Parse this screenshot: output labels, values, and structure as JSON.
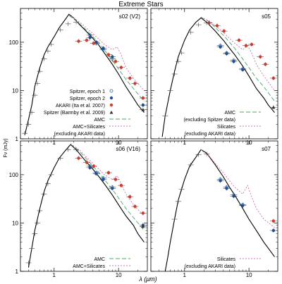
{
  "title": "Extreme Stars",
  "xlabel": "λ (μm)",
  "ylabel": "Fν (mJy)",
  "colors": {
    "spitzer1": "#2b6fb8",
    "spitzer2": "#1f4f99",
    "akari": "#d23a2a",
    "barmby": "#333333",
    "amc": "#4aa866",
    "silicates": "#d66bb8",
    "model": "#000000"
  },
  "chart_data": [
    {
      "type": "scatter",
      "panel": "s02 (V2)",
      "title": "s02 (V2)",
      "x_scale": "log",
      "y_scale": "log",
      "xlim": [
        0.3,
        28
      ],
      "ylim": [
        1,
        500
      ],
      "x_ticks": [
        1,
        10
      ],
      "y_ticks": [
        1,
        10,
        100
      ],
      "legend": [
        {
          "label": "Spitzer, epoch 1",
          "kind": "marker",
          "color_key": "spitzer1",
          "marker": "circle-open"
        },
        {
          "label": "Spitzer, epoch 2",
          "kind": "marker",
          "color_key": "spitzer2",
          "marker": "circle"
        },
        {
          "label": "AKARI (Ita et al. 2007)",
          "kind": "marker",
          "color_key": "akari",
          "marker": "circle"
        },
        {
          "label": "Spitzer (Barmby et al. 2009)",
          "kind": "marker",
          "color_key": "barmby",
          "marker": "triangle"
        },
        {
          "label": "AMC",
          "kind": "line",
          "color_key": "amc",
          "dash": "6,3"
        },
        {
          "label": "AMC+Silicates",
          "kind": "line",
          "color_key": "silicates",
          "dash": "2,2"
        },
        {
          "label": "(excluding AKARI data)",
          "kind": "text"
        }
      ],
      "legend_placement": "bottom-left",
      "series": [
        {
          "name": "Model",
          "kind": "line",
          "color_key": "model",
          "x": [
            0.35,
            0.4,
            0.45,
            0.5,
            0.6,
            0.7,
            0.8,
            1.0,
            1.2,
            1.5,
            1.7,
            2.0,
            2.5,
            3.0,
            4.0,
            5.0,
            6.0,
            8.0,
            10,
            13,
            17,
            20,
            25
          ],
          "y": [
            1.2,
            2.5,
            5,
            12,
            30,
            55,
            80,
            130,
            200,
            300,
            380,
            320,
            230,
            180,
            120,
            85,
            60,
            35,
            22,
            12,
            7,
            5,
            3.5
          ]
        },
        {
          "name": "AMC",
          "kind": "line",
          "color_key": "amc",
          "dash": "6,3",
          "x": [
            1.7,
            2.5,
            3.0,
            4.0,
            5.0,
            6.0,
            8.0,
            10,
            13,
            17,
            25
          ],
          "y": [
            360,
            240,
            190,
            130,
            95,
            70,
            42,
            28,
            17,
            11,
            6
          ]
        },
        {
          "name": "AMC+Silicates",
          "kind": "line",
          "color_key": "silicates",
          "dash": "2,2",
          "x": [
            1.7,
            2.5,
            3.0,
            4.0,
            5.0,
            6.0,
            8.0,
            9.5,
            11,
            13,
            17,
            25
          ],
          "y": [
            370,
            260,
            210,
            150,
            115,
            90,
            70,
            80,
            55,
            30,
            18,
            10
          ]
        },
        {
          "name": "Spitzer, epoch 1",
          "kind": "points",
          "color_key": "spitzer1",
          "marker": "circle-open",
          "x": [
            3.6,
            4.5,
            5.8,
            8.0
          ],
          "y": [
            140,
            95,
            70,
            45
          ]
        },
        {
          "name": "Spitzer, epoch 2",
          "kind": "points",
          "color_key": "spitzer2",
          "marker": "circle",
          "x": [
            3.6,
            4.5,
            5.8,
            8.0,
            24
          ],
          "y": [
            125,
            100,
            75,
            50,
            5
          ]
        },
        {
          "name": "AKARI (Ita et al. 2007)",
          "kind": "points",
          "color_key": "akari",
          "marker": "circle",
          "x": [
            2.4,
            3.2,
            4.1,
            7.0,
            9.0,
            11,
            15,
            18,
            24
          ],
          "y": [
            105,
            110,
            95,
            55,
            40,
            30,
            18,
            14,
            7
          ]
        },
        {
          "name": "Spitzer (Barmby et al. 2009)",
          "kind": "points",
          "color_key": "barmby",
          "marker": "triangle",
          "x": [
            24
          ],
          "y": [
            4
          ]
        },
        {
          "name": "Photometry",
          "kind": "cross",
          "x": [
            0.35,
            0.4,
            0.45,
            0.5,
            0.55,
            0.6,
            0.7,
            0.8,
            0.9,
            1.25,
            1.65,
            2.2
          ],
          "y": [
            1.3,
            2.0,
            3.5,
            8,
            14,
            25,
            45,
            65,
            90,
            180,
            240,
            260
          ]
        }
      ]
    },
    {
      "type": "scatter",
      "panel": "s05",
      "title": "s05",
      "x_scale": "log",
      "y_scale": "log",
      "xlim": [
        0.3,
        28
      ],
      "ylim": [
        1,
        500
      ],
      "x_ticks": [
        1,
        10
      ],
      "y_ticks": [
        1,
        10,
        100
      ],
      "legend": [
        {
          "label": "AMC",
          "kind": "line",
          "color_key": "amc",
          "dash": "6,3"
        },
        {
          "label": "(excluding Spitzer data)",
          "kind": "text"
        },
        {
          "label": "Silicates",
          "kind": "line",
          "color_key": "silicates",
          "dash": "2,2"
        },
        {
          "label": "(excluding AKARI data)",
          "kind": "text"
        }
      ],
      "legend_placement": "bottom-left",
      "series": [
        {
          "name": "Model",
          "kind": "line",
          "color_key": "model",
          "x": [
            0.45,
            0.5,
            0.6,
            0.7,
            0.8,
            1.0,
            1.2,
            1.5,
            1.8,
            2.2,
            3.0,
            4.0,
            5.0,
            6.0,
            8.0,
            10,
            13,
            17,
            20,
            25
          ],
          "y": [
            1.1,
            3,
            10,
            25,
            50,
            110,
            180,
            260,
            320,
            260,
            170,
            110,
            75,
            55,
            32,
            20,
            11,
            7,
            5,
            3.5
          ]
        },
        {
          "name": "AMC",
          "kind": "line",
          "color_key": "amc",
          "dash": "6,3",
          "x": [
            1.8,
            2.5,
            3.0,
            4.0,
            5.0,
            6.0,
            8.0,
            10,
            13,
            17,
            25
          ],
          "y": [
            330,
            260,
            200,
            140,
            100,
            75,
            45,
            30,
            18,
            12,
            6
          ]
        },
        {
          "name": "Silicates",
          "kind": "line",
          "color_key": "silicates",
          "dash": "2,2",
          "x": [
            1.8,
            2.5,
            3.0,
            4.0,
            5.0,
            6.0,
            8.0,
            9.5,
            11,
            13,
            17,
            25
          ],
          "y": [
            330,
            270,
            220,
            160,
            120,
            95,
            70,
            85,
            60,
            35,
            20,
            10
          ]
        },
        {
          "name": "Spitzer, epoch 1",
          "kind": "points",
          "color_key": "spitzer1",
          "marker": "circle-open",
          "x": [
            3.6,
            4.5,
            5.8,
            8.0
          ],
          "y": [
            85,
            60,
            42,
            28
          ]
        },
        {
          "name": "Spitzer, epoch 2",
          "kind": "points",
          "color_key": "spitzer2",
          "marker": "circle",
          "x": [
            3.6,
            4.5,
            5.8,
            8.0
          ],
          "y": [
            80,
            58,
            40,
            27
          ]
        },
        {
          "name": "AKARI (Ita et al. 2007)",
          "kind": "points",
          "color_key": "akari",
          "marker": "circle",
          "x": [
            2.4,
            3.2,
            4.1,
            7.0,
            9.0,
            11,
            15,
            18,
            24
          ],
          "y": [
            250,
            220,
            170,
            110,
            85,
            90,
            50,
            35,
            18
          ]
        },
        {
          "name": "Spitzer (Barmby et al. 2009)",
          "kind": "points",
          "color_key": "barmby",
          "marker": "triangle",
          "x": [
            24
          ],
          "y": [
            4.5
          ]
        },
        {
          "name": "Photometry",
          "kind": "cross",
          "x": [
            0.5,
            0.6,
            0.7,
            0.8,
            0.9,
            1.25,
            1.65,
            2.2
          ],
          "y": [
            3,
            10,
            22,
            40,
            60,
            160,
            230,
            250
          ]
        }
      ]
    },
    {
      "type": "scatter",
      "panel": "s06 (V16)",
      "title": "s06 (V16)",
      "x_scale": "log",
      "y_scale": "log",
      "xlim": [
        0.3,
        28
      ],
      "ylim": [
        1,
        500
      ],
      "x_ticks": [
        1,
        10
      ],
      "y_ticks": [
        1,
        10,
        100
      ],
      "legend": [
        {
          "label": "AMC",
          "kind": "line",
          "color_key": "amc",
          "dash": "6,3"
        },
        {
          "label": "AMC+Silicates",
          "kind": "line",
          "color_key": "silicates",
          "dash": "2,2"
        }
      ],
      "legend_placement": "bottom-left",
      "series": [
        {
          "name": "Model",
          "kind": "line",
          "color_key": "model",
          "x": [
            0.4,
            0.45,
            0.5,
            0.6,
            0.7,
            0.8,
            1.0,
            1.2,
            1.5,
            1.8,
            2.2,
            3.0,
            4.0,
            5.0,
            6.0,
            8.0,
            10,
            13,
            17,
            20,
            25
          ],
          "y": [
            1.2,
            3,
            7,
            20,
            45,
            75,
            140,
            220,
            320,
            420,
            330,
            200,
            130,
            90,
            65,
            38,
            24,
            14,
            9,
            6,
            4
          ]
        },
        {
          "name": "AMC",
          "kind": "line",
          "color_key": "amc",
          "dash": "6,3",
          "x": [
            1.8,
            2.5,
            3.0,
            4.0,
            5.0,
            6.0,
            8.0,
            10,
            13,
            17,
            25
          ],
          "y": [
            430,
            300,
            230,
            150,
            110,
            80,
            50,
            33,
            20,
            13,
            7
          ]
        },
        {
          "name": "AMC+Silicates",
          "kind": "line",
          "color_key": "silicates",
          "dash": "2,2",
          "x": [
            1.8,
            2.5,
            3.0,
            4.0,
            5.0,
            6.0,
            8.0,
            9.5,
            11,
            13,
            17,
            25
          ],
          "y": [
            440,
            320,
            250,
            170,
            130,
            100,
            80,
            95,
            65,
            40,
            24,
            14
          ]
        },
        {
          "name": "Spitzer, epoch 1",
          "kind": "points",
          "color_key": "spitzer1",
          "marker": "circle-open",
          "x": [
            3.6,
            4.5,
            5.8,
            8.0
          ],
          "y": [
            150,
            110,
            85,
            55
          ]
        },
        {
          "name": "Spitzer, epoch 2",
          "kind": "points",
          "color_key": "spitzer2",
          "marker": "circle",
          "x": [
            3.6,
            4.5,
            5.8,
            8.0,
            24
          ],
          "y": [
            140,
            105,
            80,
            52,
            9
          ]
        },
        {
          "name": "AKARI (Ita et al. 2007)",
          "kind": "points",
          "color_key": "akari",
          "marker": "circle",
          "x": [
            2.4,
            3.2,
            4.1,
            7.0,
            9.0,
            11,
            15,
            18,
            24
          ],
          "y": [
            220,
            180,
            150,
            110,
            80,
            60,
            35,
            22,
            16
          ]
        },
        {
          "name": "Spitzer (Barmby et al. 2009)",
          "kind": "points",
          "color_key": "barmby",
          "marker": "triangle",
          "x": [
            24
          ],
          "y": [
            8.5
          ]
        },
        {
          "name": "Photometry",
          "kind": "cross",
          "x": [
            0.4,
            0.45,
            0.5,
            0.55,
            0.6,
            0.7,
            0.8,
            0.9,
            1.25,
            1.65,
            2.2
          ],
          "y": [
            1.5,
            3,
            6,
            10,
            18,
            40,
            65,
            100,
            220,
            330,
            330
          ]
        }
      ]
    },
    {
      "type": "scatter",
      "panel": "s07",
      "title": "s07",
      "x_scale": "log",
      "y_scale": "log",
      "xlim": [
        0.3,
        28
      ],
      "ylim": [
        1,
        500
      ],
      "x_ticks": [
        1,
        10
      ],
      "y_ticks": [
        1,
        10,
        100
      ],
      "legend": [
        {
          "label": "Silicates",
          "kind": "line",
          "color_key": "silicates",
          "dash": "2,2"
        },
        {
          "label": "(excluding AKARI data)",
          "kind": "text"
        }
      ],
      "legend_placement": "bottom-right",
      "series": [
        {
          "name": "Model",
          "kind": "line",
          "color_key": "model",
          "x": [
            0.5,
            0.55,
            0.6,
            0.7,
            0.8,
            1.0,
            1.2,
            1.5,
            1.8,
            2.2,
            3.0,
            4.0,
            5.0,
            6.0,
            8.0,
            10,
            13,
            17,
            20,
            25
          ],
          "y": [
            1.0,
            2,
            4,
            12,
            30,
            80,
            150,
            230,
            330,
            280,
            160,
            90,
            55,
            38,
            20,
            12,
            7,
            4,
            3,
            2
          ]
        },
        {
          "name": "Silicates",
          "kind": "line",
          "color_key": "silicates",
          "dash": "2,2",
          "x": [
            1.8,
            2.5,
            3.0,
            4.0,
            5.0,
            6.0,
            8.0,
            9.5,
            11,
            13,
            17,
            25
          ],
          "y": [
            330,
            230,
            170,
            110,
            75,
            55,
            40,
            60,
            35,
            20,
            12,
            8
          ]
        },
        {
          "name": "Spitzer, epoch 1",
          "kind": "points",
          "color_key": "spitzer1",
          "marker": "circle-open",
          "x": [
            3.6,
            4.5,
            5.8,
            8.0
          ],
          "y": [
            80,
            55,
            38,
            24
          ]
        },
        {
          "name": "Spitzer, epoch 2",
          "kind": "points",
          "color_key": "spitzer2",
          "marker": "circle",
          "x": [
            3.6,
            4.5,
            5.8,
            8.0,
            24
          ],
          "y": [
            75,
            52,
            36,
            23,
            7
          ]
        },
        {
          "name": "AKARI (Ita et al. 2007)",
          "kind": "points",
          "color_key": "akari",
          "marker": "circle",
          "x": [
            24
          ],
          "y": [
            11
          ]
        },
        {
          "name": "Photometry",
          "kind": "cross",
          "x": [
            0.7,
            0.8,
            0.9,
            1.25,
            1.65,
            2.2
          ],
          "y": [
            12,
            28,
            50,
            160,
            260,
            270
          ]
        }
      ]
    }
  ]
}
